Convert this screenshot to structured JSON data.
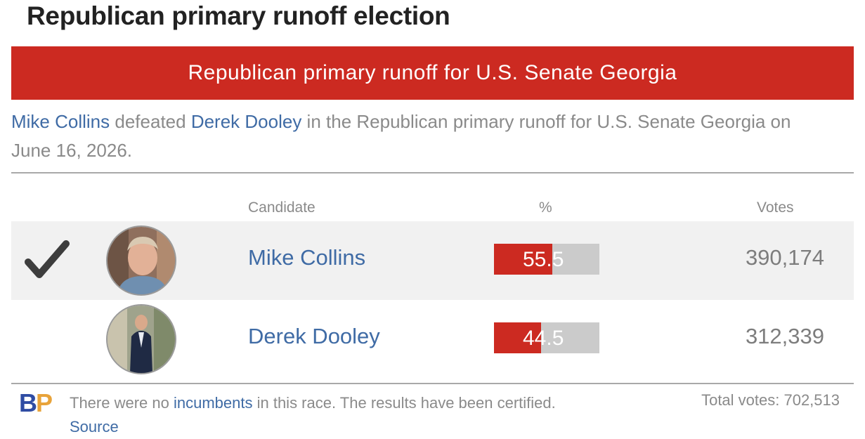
{
  "page": {
    "title": "Republican primary runoff election"
  },
  "banner": {
    "text": "Republican primary runoff for U.S. Senate Georgia"
  },
  "summary": {
    "winner": "Mike Collins",
    "verb": " defeated ",
    "loser": "Derek Dooley",
    "rest": " in the Republican primary runoff for U.S. Senate Georgia on June 16, 2026."
  },
  "table": {
    "headers": {
      "candidate": "Candidate",
      "percent": "%",
      "votes": "Votes"
    },
    "rows": [
      {
        "name": "Mike Collins",
        "percent": 55.5,
        "percent_label": "55.5",
        "votes": "390,174",
        "winner": true,
        "check_icon": "checkmark-icon",
        "avatar_icon": "candidate-photo-icon"
      },
      {
        "name": "Derek Dooley",
        "percent": 44.5,
        "percent_label": "44.5",
        "votes": "312,339",
        "winner": false,
        "avatar_icon": "candidate-photo-icon"
      }
    ]
  },
  "footer": {
    "logo_b": "B",
    "logo_p": "P",
    "note_pre": "There were no ",
    "note_link": "incumbents",
    "note_mid": " in this race. The results have been certified. ",
    "note_source": "Source",
    "total": "Total votes: 702,513"
  },
  "colors": {
    "accent_red": "#cc2a21",
    "link_blue": "#3f6ba5",
    "bar_bg": "#cbcbcb",
    "logo_blue": "#2f4ca3",
    "logo_orange": "#e8a33a"
  }
}
